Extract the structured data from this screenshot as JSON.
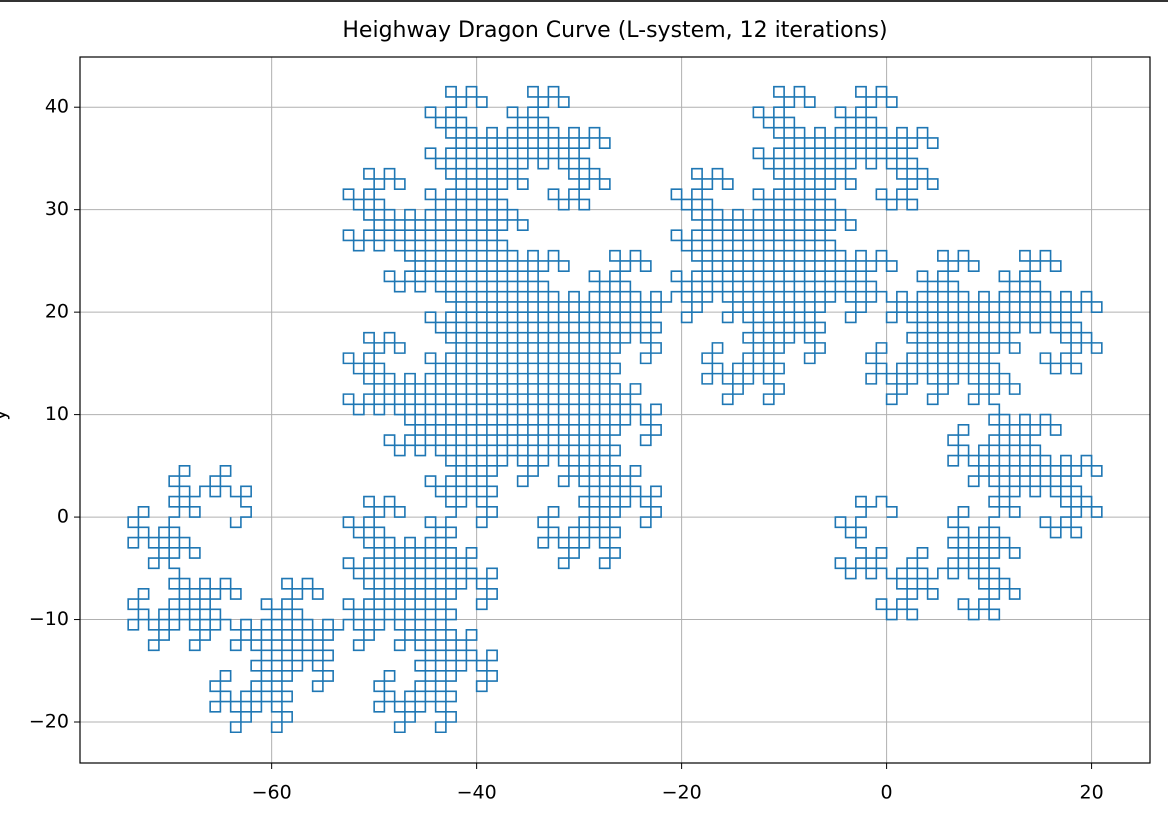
{
  "chart_data": {
    "type": "lsystem-line",
    "title": "Heighway Dragon Curve (L-system, 12 iterations)",
    "ylabel": "y",
    "lsystem": {
      "axiom": "FX",
      "rules": {
        "X": "X+YF+",
        "Y": "-FX-Y"
      },
      "angle": 90,
      "iterations": 12
    },
    "color": "#1f77b4",
    "xlim": [
      -78.7,
      25.7
    ],
    "ylim": [
      -24.0,
      44.9
    ],
    "xticks": [
      {
        "value": -60,
        "label": "−60"
      },
      {
        "value": -40,
        "label": "−40"
      },
      {
        "value": -20,
        "label": "−20"
      },
      0,
      20
    ],
    "yticks": [
      {
        "value": -20,
        "label": "−20"
      },
      {
        "value": -10,
        "label": "−10"
      },
      0,
      10,
      20,
      30,
      40
    ],
    "grid": true
  }
}
